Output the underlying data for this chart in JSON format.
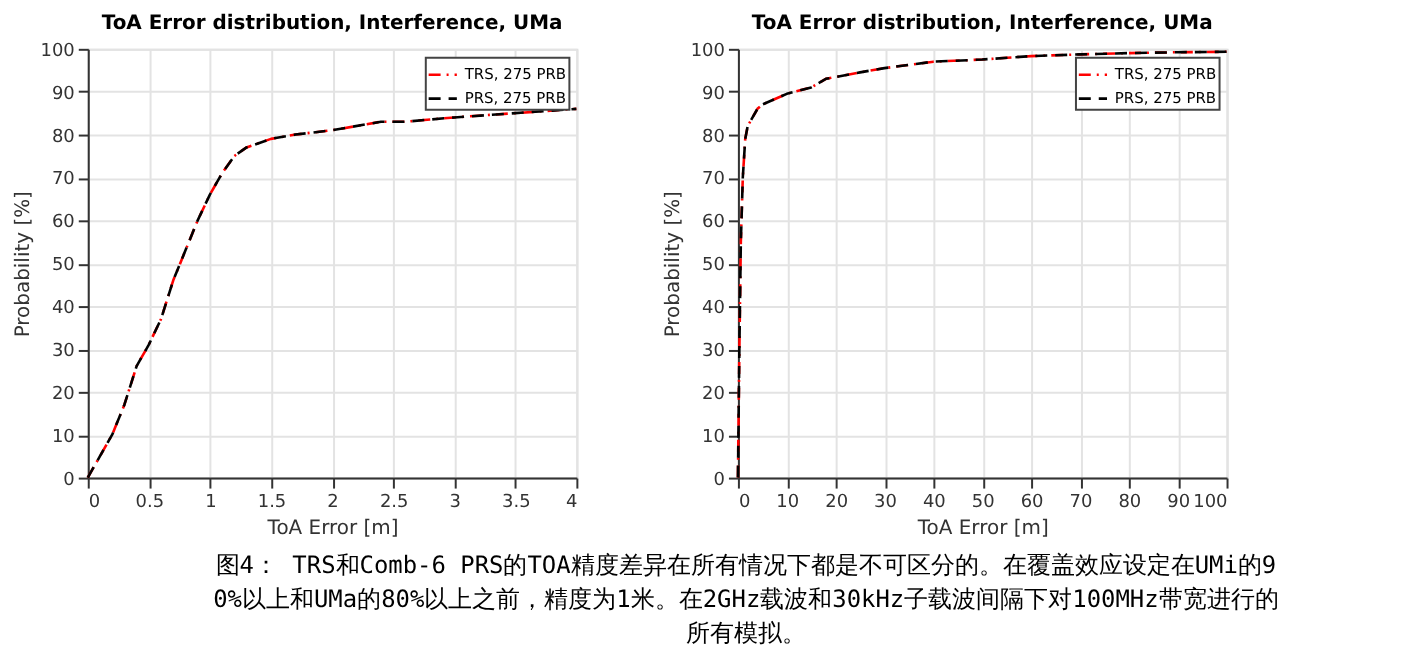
{
  "chart_data": [
    {
      "type": "line",
      "title": "ToA Error distribution, Interference, UMa",
      "xlabel": "ToA Error [m]",
      "ylabel": "Probability [%]",
      "xlim": [
        0,
        4
      ],
      "xticks": [
        0,
        0.5,
        1,
        1.5,
        2,
        2.5,
        3,
        3.5,
        4
      ],
      "ylim": [
        0,
        100
      ],
      "yticks": [
        0,
        10,
        20,
        30,
        40,
        50,
        60,
        70,
        80,
        90,
        100
      ],
      "grid": true,
      "legend": "top right",
      "x": [
        0,
        0.1,
        0.2,
        0.3,
        0.4,
        0.5,
        0.6,
        0.7,
        0.8,
        0.9,
        1.0,
        1.1,
        1.2,
        1.3,
        1.5,
        1.7,
        2,
        2.4,
        2.6,
        3,
        3.5,
        4
      ],
      "series": [
        {
          "name": "TRS, 275 PRB",
          "color": "#ff0000",
          "line_style": "dashed",
          "values": [
            0,
            5,
            10,
            17,
            26,
            31,
            37,
            46,
            53,
            60,
            66,
            71,
            75,
            77,
            79,
            80,
            81,
            83,
            83,
            84,
            85,
            86
          ]
        },
        {
          "name": "PRS, 275 PRB",
          "color": "#000000",
          "line_style": "dashed",
          "values": [
            0,
            5,
            10,
            17,
            26,
            31,
            37,
            46,
            53,
            60,
            66,
            71,
            75,
            77,
            79,
            80,
            81,
            83,
            83,
            84,
            85,
            86
          ]
        }
      ],
      "annotations": [
        "图4： TRS和Comb-6 PRS的TOA精度差异在所有情况下都是不可区分的。在覆盖效应设定在UMi的90%以上和UMa的80%以上之前，精度为1米。在2GHz载波和30kHz子载波间隔下对100MHz带宽进行的所有模拟。"
      ]
    },
    {
      "type": "line",
      "title": "ToA Error distribution, Interference, UMa",
      "xlabel": "ToA Error [m]",
      "ylabel": "Probability [%]",
      "xlim": [
        0,
        100
      ],
      "xticks": [
        0,
        10,
        20,
        30,
        40,
        50,
        60,
        70,
        80,
        90,
        100
      ],
      "ylim": [
        0,
        100
      ],
      "yticks": [
        0,
        10,
        20,
        30,
        40,
        50,
        60,
        70,
        80,
        90,
        100
      ],
      "grid": true,
      "legend": "top right",
      "x": [
        0,
        0.3,
        0.6,
        1,
        1.5,
        2,
        3,
        4,
        5,
        7,
        10,
        15,
        18,
        25,
        30,
        40,
        50,
        60,
        70,
        80,
        90,
        100
      ],
      "series": [
        {
          "name": "TRS, 275 PRB",
          "color": "#ff0000",
          "line_style": "dashed",
          "values": [
            0,
            30,
            55,
            70,
            79,
            82,
            84,
            86,
            87,
            88,
            89.5,
            91,
            93,
            94.5,
            95.5,
            97,
            97.5,
            98.3,
            98.7,
            99,
            99.2,
            99.3
          ]
        },
        {
          "name": "PRS, 275 PRB",
          "color": "#000000",
          "line_style": "dashed",
          "values": [
            0,
            30,
            55,
            70,
            79,
            82,
            84,
            86,
            87,
            88,
            89.5,
            91,
            93,
            94.5,
            95.5,
            97,
            97.5,
            98.3,
            98.7,
            99,
            99.2,
            99.3
          ]
        }
      ]
    }
  ]
}
